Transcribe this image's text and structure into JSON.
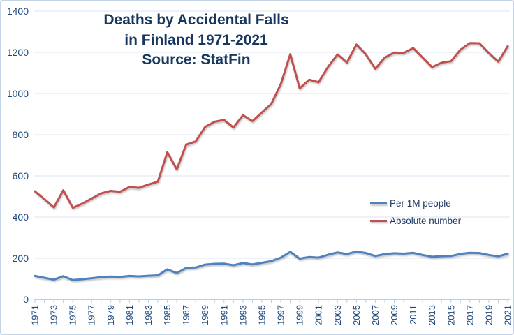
{
  "chart_data": {
    "type": "line",
    "title": "Deaths by Accidental Falls in Finland 1971-2021",
    "title_lines": [
      "Deaths by Accidental Falls",
      "in Finland 1971-2021",
      "Source: StatFin"
    ],
    "source": "StatFin",
    "xlabel": "",
    "ylabel": "",
    "ylim": [
      0,
      1400
    ],
    "y_ticks": [
      0,
      200,
      400,
      600,
      800,
      1000,
      1200,
      1400
    ],
    "grid": true,
    "legend_position": "middle-right",
    "x": [
      1971,
      1972,
      1973,
      1974,
      1975,
      1976,
      1977,
      1978,
      1979,
      1980,
      1981,
      1982,
      1983,
      1984,
      1985,
      1986,
      1987,
      1988,
      1989,
      1990,
      1991,
      1992,
      1993,
      1994,
      1995,
      1996,
      1997,
      1998,
      1999,
      2000,
      2001,
      2002,
      2003,
      2004,
      2005,
      2006,
      2007,
      2008,
      2009,
      2010,
      2011,
      2012,
      2013,
      2014,
      2015,
      2016,
      2017,
      2018,
      2019,
      2020,
      2021
    ],
    "x_tick_labels": [
      "1971",
      "1973",
      "1975",
      "1977",
      "1979",
      "1981",
      "1983",
      "1985",
      "1987",
      "1989",
      "1991",
      "1993",
      "1995",
      "1997",
      "1999",
      "2001",
      "2003",
      "2005",
      "2007",
      "2009",
      "2011",
      "2013",
      "2015",
      "2017",
      "2019",
      "2021"
    ],
    "series": [
      {
        "name": "Per 1M people",
        "color": "#4f81bd",
        "values": [
          114,
          105,
          96,
          113,
          94,
          98,
          103,
          108,
          111,
          109,
          114,
          112,
          115,
          117,
          146,
          128,
          153,
          155,
          169,
          173,
          174,
          166,
          177,
          170,
          178,
          186,
          203,
          231,
          198,
          206,
          203,
          217,
          228,
          220,
          233,
          225,
          211,
          220,
          224,
          222,
          226,
          216,
          207,
          210,
          211,
          221,
          226,
          225,
          216,
          209,
          222
        ]
      },
      {
        "name": "Absolute number",
        "color": "#c0504d",
        "values": [
          525,
          487,
          447,
          530,
          445,
          465,
          490,
          515,
          527,
          523,
          546,
          542,
          558,
          572,
          715,
          632,
          752,
          767,
          838,
          863,
          872,
          835,
          895,
          866,
          908,
          950,
          1045,
          1191,
          1025,
          1067,
          1055,
          1129,
          1190,
          1151,
          1238,
          1190,
          1120,
          1175,
          1199,
          1197,
          1221,
          1175,
          1128,
          1150,
          1157,
          1213,
          1245,
          1244,
          1197,
          1155,
          1230
        ]
      }
    ],
    "colors": {
      "title": "#17375e",
      "axis_labels": "#1f497d",
      "gridlines": "#d9e4f1",
      "axis_line": "#b9cfe4",
      "legend_text": "#1f3864",
      "background": "#ffffff",
      "border": "#c3d4e7"
    }
  }
}
